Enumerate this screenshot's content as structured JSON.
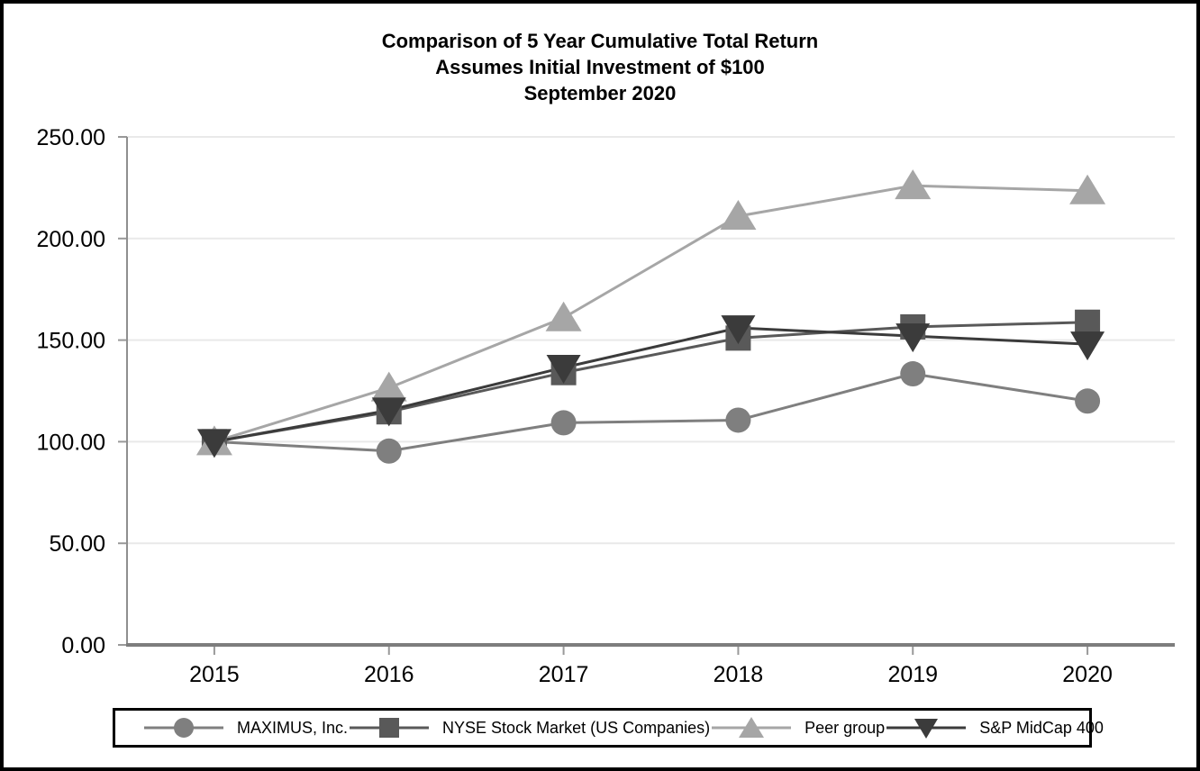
{
  "title": {
    "line1": "Comparison of 5 Year Cumulative Total Return",
    "line2": "Assumes Initial Investment of $100",
    "line3": "September 2020"
  },
  "chart_data": {
    "type": "line",
    "title": "Comparison of 5 Year Cumulative Total Return — Assumes Initial Investment of $100 — September 2020",
    "categories": [
      "2015",
      "2016",
      "2017",
      "2018",
      "2019",
      "2020"
    ],
    "series": [
      {
        "name": "MAXIMUS, Inc.",
        "marker": "circle",
        "color": "#7f7f7f",
        "values": [
          100.0,
          95.4,
          109.3,
          110.6,
          133.4,
          120.0
        ]
      },
      {
        "name": "NYSE Stock Market (US Companies)",
        "marker": "square",
        "color": "#595959",
        "values": [
          100.0,
          114.7,
          134.0,
          151.0,
          156.5,
          158.8
        ]
      },
      {
        "name": "Peer group",
        "marker": "triangle-up",
        "color": "#a6a6a6",
        "values": [
          100.0,
          126.5,
          161.0,
          211.0,
          226.0,
          223.5
        ]
      },
      {
        "name": "S&P MidCap 400",
        "marker": "triangle-down",
        "color": "#3b3b3b",
        "values": [
          100.0,
          115.5,
          136.5,
          156.0,
          152.0,
          148.0
        ]
      }
    ],
    "xlabel": "",
    "ylabel": "",
    "ylim": [
      0,
      250
    ],
    "ytick_step": 50,
    "ytick_labels": [
      "0.00",
      "50.00",
      "100.00",
      "150.00",
      "200.00",
      "250.00"
    ],
    "grid": true,
    "legend_position": "bottom"
  },
  "colors": {
    "grid": "#e9e9e9",
    "y_axis": "#8f8f8f",
    "x_axis": "#7d7d7d",
    "tick": "#999999",
    "text": "#000000",
    "border": "#000000"
  }
}
